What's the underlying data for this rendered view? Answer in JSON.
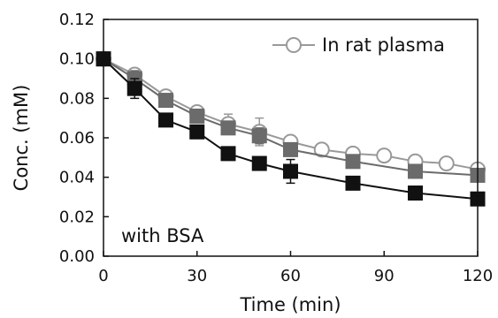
{
  "chart_data": {
    "type": "line",
    "xlabel": "Time (min)",
    "ylabel": "Conc. (mM)",
    "xlim": [
      0,
      120
    ],
    "ylim": [
      0,
      0.12
    ],
    "xticks": [
      0,
      30,
      60,
      90,
      120
    ],
    "xtick_labels": [
      "0",
      "30",
      "60",
      "90",
      "120"
    ],
    "yticks": [
      0,
      0.02,
      0.04,
      0.06,
      0.08,
      0.1,
      0.12
    ],
    "ytick_labels": [
      "0.00",
      "0.02",
      "0.04",
      "0.06",
      "0.08",
      "0.10",
      "0.12"
    ],
    "grid": false,
    "legend_position": "top-right",
    "annotation": "with BSA",
    "series": [
      {
        "name": "In rat plasma",
        "marker": "open-circle",
        "color": "#999999",
        "x": [
          0,
          10,
          20,
          30,
          40,
          50,
          60,
          70,
          80,
          90,
          100,
          110,
          120
        ],
        "y": [
          0.1,
          0.092,
          0.081,
          0.073,
          0.067,
          0.063,
          0.058,
          0.054,
          0.052,
          0.051,
          0.048,
          0.047,
          0.044
        ],
        "error": [
          0,
          0.003,
          0.003,
          0.002,
          0.005,
          0.007,
          0.002,
          0,
          0,
          0,
          0,
          0,
          0
        ]
      },
      {
        "marker": "gray-square",
        "color": "#6b6b6b",
        "x": [
          0,
          10,
          20,
          30,
          40,
          50,
          60,
          80,
          100,
          120
        ],
        "y": [
          0.1,
          0.09,
          0.079,
          0.071,
          0.065,
          0.061,
          0.054,
          0.048,
          0.043,
          0.041
        ],
        "error": [
          0,
          0.004,
          0.003,
          0.003,
          0.003,
          0.004,
          0.003,
          0.002,
          0.002,
          0.002
        ]
      },
      {
        "marker": "black-square",
        "color": "#111111",
        "x": [
          0,
          10,
          20,
          30,
          40,
          50,
          60,
          80,
          100,
          120
        ],
        "y": [
          0.1,
          0.085,
          0.069,
          0.063,
          0.052,
          0.047,
          0.043,
          0.037,
          0.032,
          0.029
        ],
        "error": [
          0,
          0.005,
          0.002,
          0.002,
          0.003,
          0.002,
          0.006,
          0.002,
          0.002,
          0.002
        ]
      }
    ]
  }
}
